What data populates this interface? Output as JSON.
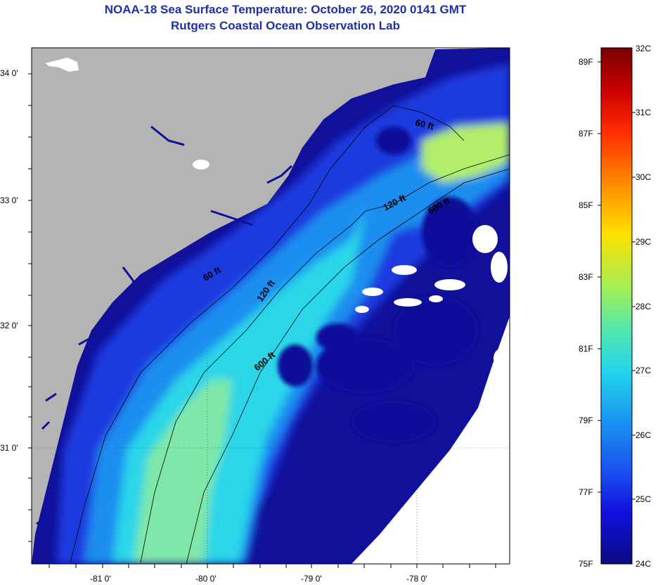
{
  "title": {
    "line1": "NOAA-18 Sea Surface Temperature:  October 26, 2020 0141 GMT",
    "line2": "Rutgers Coastal Ocean Observation Lab"
  },
  "map": {
    "lat_labels": [
      "34 0'",
      "33 0'",
      "32 0'",
      "31 0'"
    ],
    "lon_labels": [
      "-81 0'",
      "-80 0'",
      "-79 0'",
      "-78 0'"
    ],
    "contours": {
      "c60_a": "60 ft",
      "c60_b": "60 ft",
      "c120_a": "120 ft",
      "c120_b": "120 ft",
      "c600_a": "600 ft",
      "c600_b": "600 ft"
    },
    "colors": {
      "land": "#b4b4b4",
      "cloud": "#ffffff",
      "cold": "#10109a",
      "blue": "#1a3adf",
      "mid": "#1e8ef0",
      "cyan": "#2ad6e8",
      "warm": "#7fe8a8",
      "yellowgreen": "#b2ee6a"
    }
  },
  "colorbar": {
    "celsius": [
      "32C",
      "31C",
      "30C",
      "29C",
      "28C",
      "27C",
      "26C",
      "25C",
      "24C"
    ],
    "fahrenheit": [
      "89F",
      "87F",
      "85F",
      "83F",
      "81F",
      "79F",
      "77F",
      "75F"
    ]
  }
}
